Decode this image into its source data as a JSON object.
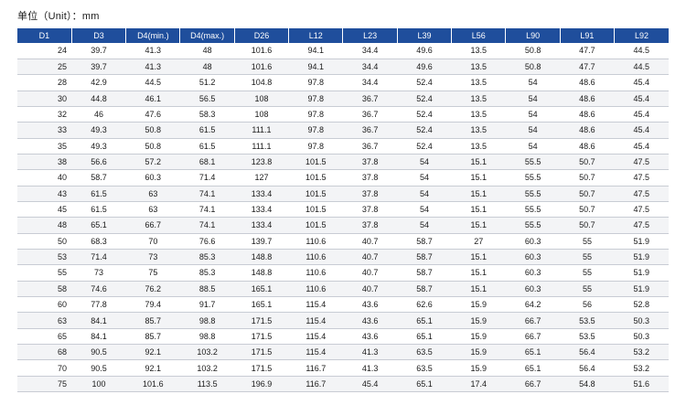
{
  "unit_label": "单位（Unit）：mm",
  "table": {
    "columns": [
      "D1",
      "D3",
      "D4(min.)",
      "D4(max.)",
      "D26",
      "L12",
      "L23",
      "L39",
      "L56",
      "L90",
      "L91",
      "L92"
    ],
    "rows": [
      [
        "24",
        "39.7",
        "41.3",
        "48",
        "101.6",
        "94.1",
        "34.4",
        "49.6",
        "13.5",
        "50.8",
        "47.7",
        "44.5"
      ],
      [
        "25",
        "39.7",
        "41.3",
        "48",
        "101.6",
        "94.1",
        "34.4",
        "49.6",
        "13.5",
        "50.8",
        "47.7",
        "44.5"
      ],
      [
        "28",
        "42.9",
        "44.5",
        "51.2",
        "104.8",
        "97.8",
        "34.4",
        "52.4",
        "13.5",
        "54",
        "48.6",
        "45.4"
      ],
      [
        "30",
        "44.8",
        "46.1",
        "56.5",
        "108",
        "97.8",
        "36.7",
        "52.4",
        "13.5",
        "54",
        "48.6",
        "45.4"
      ],
      [
        "32",
        "46",
        "47.6",
        "58.3",
        "108",
        "97.8",
        "36.7",
        "52.4",
        "13.5",
        "54",
        "48.6",
        "45.4"
      ],
      [
        "33",
        "49.3",
        "50.8",
        "61.5",
        "111.1",
        "97.8",
        "36.7",
        "52.4",
        "13.5",
        "54",
        "48.6",
        "45.4"
      ],
      [
        "35",
        "49.3",
        "50.8",
        "61.5",
        "111.1",
        "97.8",
        "36.7",
        "52.4",
        "13.5",
        "54",
        "48.6",
        "45.4"
      ],
      [
        "38",
        "56.6",
        "57.2",
        "68.1",
        "123.8",
        "101.5",
        "37.8",
        "54",
        "15.1",
        "55.5",
        "50.7",
        "47.5"
      ],
      [
        "40",
        "58.7",
        "60.3",
        "71.4",
        "127",
        "101.5",
        "37.8",
        "54",
        "15.1",
        "55.5",
        "50.7",
        "47.5"
      ],
      [
        "43",
        "61.5",
        "63",
        "74.1",
        "133.4",
        "101.5",
        "37.8",
        "54",
        "15.1",
        "55.5",
        "50.7",
        "47.5"
      ],
      [
        "45",
        "61.5",
        "63",
        "74.1",
        "133.4",
        "101.5",
        "37.8",
        "54",
        "15.1",
        "55.5",
        "50.7",
        "47.5"
      ],
      [
        "48",
        "65.1",
        "66.7",
        "74.1",
        "133.4",
        "101.5",
        "37.8",
        "54",
        "15.1",
        "55.5",
        "50.7",
        "47.5"
      ],
      [
        "50",
        "68.3",
        "70",
        "76.6",
        "139.7",
        "110.6",
        "40.7",
        "58.7",
        "27",
        "60.3",
        "55",
        "51.9"
      ],
      [
        "53",
        "71.4",
        "73",
        "85.3",
        "148.8",
        "110.6",
        "40.7",
        "58.7",
        "15.1",
        "60.3",
        "55",
        "51.9"
      ],
      [
        "55",
        "73",
        "75",
        "85.3",
        "148.8",
        "110.6",
        "40.7",
        "58.7",
        "15.1",
        "60.3",
        "55",
        "51.9"
      ],
      [
        "58",
        "74.6",
        "76.2",
        "88.5",
        "165.1",
        "110.6",
        "40.7",
        "58.7",
        "15.1",
        "60.3",
        "55",
        "51.9"
      ],
      [
        "60",
        "77.8",
        "79.4",
        "91.7",
        "165.1",
        "115.4",
        "43.6",
        "62.6",
        "15.9",
        "64.2",
        "56",
        "52.8"
      ],
      [
        "63",
        "84.1",
        "85.7",
        "98.8",
        "171.5",
        "115.4",
        "43.6",
        "65.1",
        "15.9",
        "66.7",
        "53.5",
        "50.3"
      ],
      [
        "65",
        "84.1",
        "85.7",
        "98.8",
        "171.5",
        "115.4",
        "43.6",
        "65.1",
        "15.9",
        "66.7",
        "53.5",
        "50.3"
      ],
      [
        "68",
        "90.5",
        "92.1",
        "103.2",
        "171.5",
        "115.4",
        "41.3",
        "63.5",
        "15.9",
        "65.1",
        "56.4",
        "53.2"
      ],
      [
        "70",
        "90.5",
        "92.1",
        "103.2",
        "171.5",
        "116.7",
        "41.3",
        "63.5",
        "15.9",
        "65.1",
        "56.4",
        "53.2"
      ],
      [
        "75",
        "100",
        "101.6",
        "113.5",
        "196.9",
        "116.7",
        "45.4",
        "65.1",
        "17.4",
        "66.7",
        "54.8",
        "51.6"
      ]
    ]
  }
}
